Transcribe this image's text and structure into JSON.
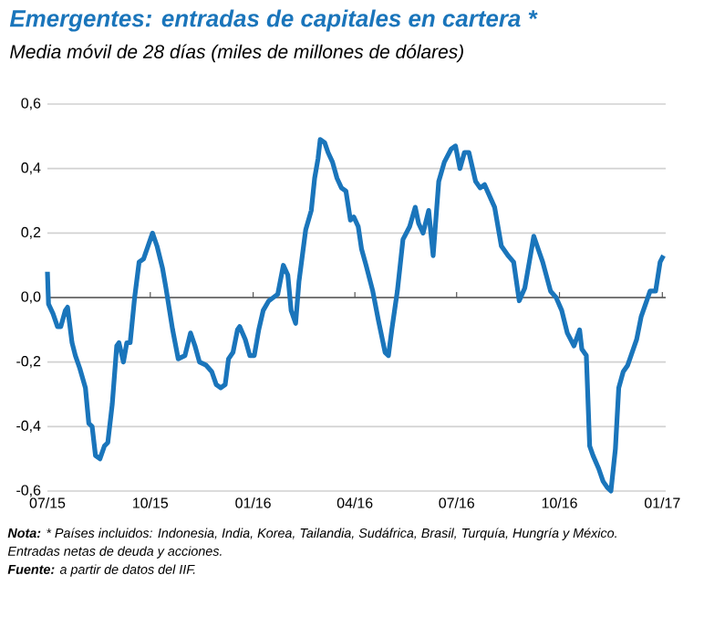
{
  "chart_data": {
    "type": "line",
    "title": "Emergentes: entradas de capitales en cartera *",
    "subtitle": "Media móvil de 28 días (miles de millones de dólares)",
    "annotations": [
      "**Nota:** * Países incluidos: Indonesia, India, Korea, Tailandia, Sudáfrica, Brasil, Turquía, Hungría y México.",
      "Entradas netas de deuda y acciones.",
      "**Fuente:** a partir de datos del IIF."
    ],
    "x": [
      "2015-07-01",
      "2015-07-02",
      "2015-07-06",
      "2015-07-10",
      "2015-07-13",
      "2015-07-17",
      "2015-07-19",
      "2015-07-23",
      "2015-07-26",
      "2015-07-30",
      "2015-08-04",
      "2015-08-07",
      "2015-08-10",
      "2015-08-13",
      "2015-08-17",
      "2015-08-21",
      "2015-08-24",
      "2015-08-28",
      "2015-09-01",
      "2015-09-03",
      "2015-09-07",
      "2015-09-10",
      "2015-09-13",
      "2015-09-17",
      "2015-09-21",
      "2015-09-25",
      "2015-09-29",
      "2015-10-03",
      "2015-10-07",
      "2015-10-12",
      "2015-10-15",
      "2015-10-21",
      "2015-10-26",
      "2015-11-01",
      "2015-11-06",
      "2015-11-10",
      "2015-11-14",
      "2015-11-20",
      "2015-11-25",
      "2015-11-29",
      "2015-12-03",
      "2015-12-07",
      "2015-12-10",
      "2015-12-14",
      "2015-12-18",
      "2015-12-20",
      "2015-12-25",
      "2015-12-29",
      "2016-01-02",
      "2016-01-06",
      "2016-01-10",
      "2016-01-15",
      "2016-01-19",
      "2016-01-23",
      "2016-01-28",
      "2016-02-01",
      "2016-02-04",
      "2016-02-08",
      "2016-02-11",
      "2016-02-17",
      "2016-02-22",
      "2016-02-25",
      "2016-02-28",
      "2016-03-01",
      "2016-03-05",
      "2016-03-08",
      "2016-03-12",
      "2016-03-16",
      "2016-03-20",
      "2016-03-24",
      "2016-03-28",
      "2016-03-31",
      "2016-04-04",
      "2016-04-07",
      "2016-04-11",
      "2016-04-17",
      "2016-04-22",
      "2016-04-28",
      "2016-05-01",
      "2016-05-04",
      "2016-05-09",
      "2016-05-14",
      "2016-05-20",
      "2016-05-25",
      "2016-05-28",
      "2016-06-01",
      "2016-06-06",
      "2016-06-10",
      "2016-06-15",
      "2016-06-20",
      "2016-06-26",
      "2016-06-30",
      "2016-07-04",
      "2016-07-08",
      "2016-07-12",
      "2016-07-18",
      "2016-07-22",
      "2016-07-26",
      "2016-08-04",
      "2016-08-10",
      "2016-08-16",
      "2016-08-21",
      "2016-08-26",
      "2016-08-31",
      "2016-09-04",
      "2016-09-08",
      "2016-09-12",
      "2016-09-16",
      "2016-09-23",
      "2016-09-28",
      "2016-10-03",
      "2016-10-08",
      "2016-10-14",
      "2016-10-19",
      "2016-10-21",
      "2016-10-25",
      "2016-10-28",
      "2016-10-31",
      "2016-11-05",
      "2016-11-09",
      "2016-11-13",
      "2016-11-16",
      "2016-11-20",
      "2016-11-23",
      "2016-11-27",
      "2016-12-01",
      "2016-12-05",
      "2016-12-09",
      "2016-12-13",
      "2016-12-18",
      "2016-12-21",
      "2016-12-26",
      "2016-12-30",
      "2017-01-02"
    ],
    "series": [
      {
        "color": "#1a75bb",
        "values": [
          0.08,
          -0.02,
          -0.05,
          -0.09,
          -0.09,
          -0.04,
          -0.03,
          -0.14,
          -0.18,
          -0.22,
          -0.28,
          -0.39,
          -0.4,
          -0.49,
          -0.5,
          -0.46,
          -0.45,
          -0.33,
          -0.15,
          -0.14,
          -0.2,
          -0.14,
          -0.14,
          0.0,
          0.11,
          0.12,
          0.16,
          0.2,
          0.16,
          0.09,
          0.03,
          -0.1,
          -0.19,
          -0.18,
          -0.11,
          -0.15,
          -0.2,
          -0.21,
          -0.23,
          -0.27,
          -0.28,
          -0.27,
          -0.19,
          -0.17,
          -0.1,
          -0.09,
          -0.13,
          -0.18,
          -0.18,
          -0.1,
          -0.04,
          -0.01,
          0.0,
          0.01,
          0.1,
          0.07,
          -0.04,
          -0.08,
          0.05,
          0.21,
          0.27,
          0.37,
          0.43,
          0.49,
          0.48,
          0.45,
          0.42,
          0.37,
          0.34,
          0.33,
          0.24,
          0.25,
          0.22,
          0.15,
          0.1,
          0.02,
          -0.07,
          -0.17,
          -0.18,
          -0.1,
          0.02,
          0.18,
          0.22,
          0.28,
          0.23,
          0.2,
          0.27,
          0.13,
          0.36,
          0.42,
          0.46,
          0.47,
          0.4,
          0.45,
          0.45,
          0.36,
          0.34,
          0.35,
          0.28,
          0.16,
          0.13,
          0.11,
          -0.01,
          0.03,
          0.11,
          0.19,
          0.15,
          0.11,
          0.02,
          0.0,
          -0.04,
          -0.11,
          -0.15,
          -0.1,
          -0.16,
          -0.18,
          -0.46,
          -0.49,
          -0.53,
          -0.57,
          -0.59,
          -0.6,
          -0.47,
          -0.28,
          -0.23,
          -0.21,
          -0.17,
          -0.13,
          -0.06,
          -0.01,
          0.02,
          0.02,
          0.11,
          0.13
        ]
      }
    ],
    "xlim": [
      "2015-07-01",
      "2017-01-04"
    ],
    "xticks": [
      {
        "value": "2015-07-01",
        "label": "07/15"
      },
      {
        "value": "2015-10-01",
        "label": "10/15"
      },
      {
        "value": "2016-01-01",
        "label": "01/16"
      },
      {
        "value": "2016-04-01",
        "label": "04/16"
      },
      {
        "value": "2016-07-01",
        "label": "07/16"
      },
      {
        "value": "2016-10-01",
        "label": "10/16"
      },
      {
        "value": "2017-01-01",
        "label": "01/17"
      }
    ],
    "ylim": [
      -0.6,
      0.6
    ],
    "yticks": [
      {
        "value": -0.6,
        "label": "-0,6"
      },
      {
        "value": -0.4,
        "label": "-0,4"
      },
      {
        "value": -0.2,
        "label": "-0,2"
      },
      {
        "value": 0,
        "label": "0,0"
      },
      {
        "value": 0.2,
        "label": "0,2"
      },
      {
        "value": 0.4,
        "label": "0,4"
      },
      {
        "value": 0.6,
        "label": "0,6"
      }
    ],
    "grid": "y",
    "ref_lines": [
      {
        "axis": "y",
        "value": 0,
        "color": "#555555"
      }
    ],
    "marker": "none",
    "line_style": "solid"
  }
}
